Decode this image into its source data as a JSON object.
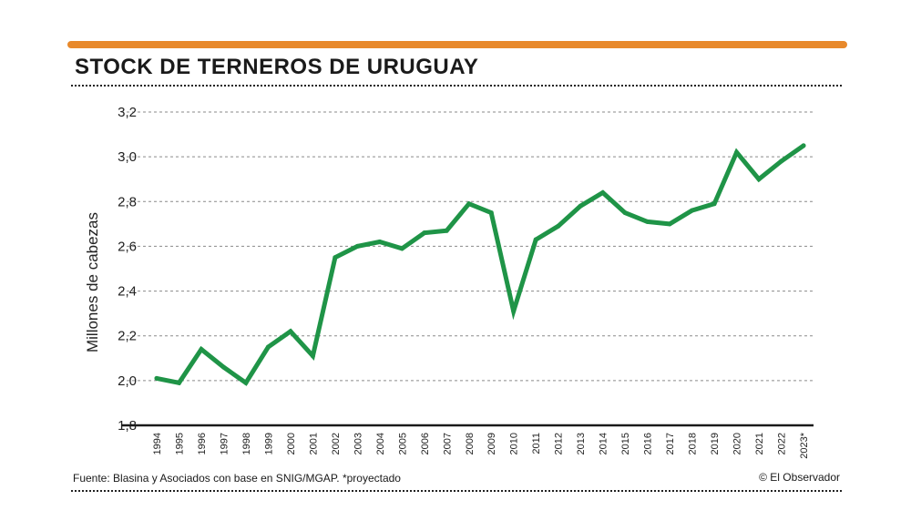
{
  "colors": {
    "accent": "#e8892b",
    "line": "#1f9447",
    "grid": "#8a8a8a",
    "axis": "#1a1a1a"
  },
  "header": {
    "title": "STOCK DE TERNEROS DE URUGUAY"
  },
  "footer": {
    "source": "Fuente: Blasina y Asociados con base en  SNIG/MGAP. *proyectado",
    "credit": "© El Observador"
  },
  "chart_data": {
    "type": "line",
    "title": "STOCK DE TERNEROS DE URUGUAY",
    "xlabel": "",
    "ylabel": "Millones de cabezas",
    "ylim": [
      1.8,
      3.2
    ],
    "yticks": [
      "1,8",
      "2,0",
      "2,2",
      "2,4",
      "2,6",
      "2,8",
      "3,0",
      "3,2"
    ],
    "grid": true,
    "categories": [
      "1994",
      "1995",
      "1996",
      "1997",
      "1998",
      "1999",
      "2000",
      "2001",
      "2002",
      "2003",
      "2004",
      "2005",
      "2006",
      "2007",
      "2008",
      "2009",
      "2010",
      "2011",
      "2012",
      "2013",
      "2014",
      "2015",
      "2016",
      "2017",
      "2018",
      "2019",
      "2020",
      "2021",
      "2022",
      "2023*"
    ],
    "series": [
      {
        "name": "Stock de terneros",
        "values": [
          2.01,
          1.99,
          2.14,
          2.06,
          1.99,
          2.15,
          2.22,
          2.11,
          2.55,
          2.6,
          2.62,
          2.59,
          2.66,
          2.67,
          2.79,
          2.75,
          2.31,
          2.63,
          2.69,
          2.78,
          2.84,
          2.75,
          2.71,
          2.7,
          2.76,
          2.79,
          3.02,
          2.9,
          2.98,
          3.05
        ]
      }
    ]
  }
}
